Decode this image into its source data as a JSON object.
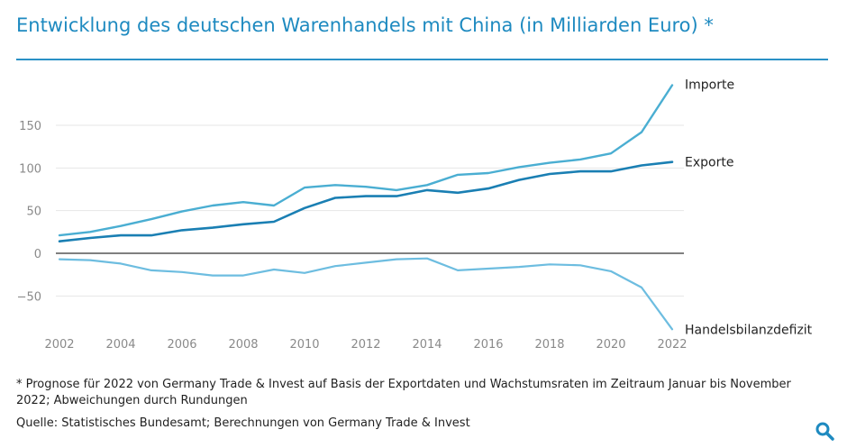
{
  "header": {
    "title": "Entwicklung des deutschen Warenhandels mit China (in Milliarden Euro) *"
  },
  "footer": {
    "note": "* Prognose für 2022 von Germany Trade & Invest auf Basis der Exportdaten und Wachstumsraten im Zeitraum Januar bis November 2022; Abweichungen durch Rundungen",
    "source": "Quelle: Statistisches Bundesamt; Berechnungen von Germany Trade & Invest"
  },
  "toolbar": {
    "zoom_icon": "magnifier-icon"
  },
  "colors": {
    "accent": "#1e8ac0",
    "importe": "#4aaed2",
    "exporte": "#1a7fb3",
    "defizit": "#6dbde0",
    "grid": "#e6e6e6",
    "zero_line": "#333333",
    "tick_text": "#8a8a8a"
  },
  "chart_data": {
    "type": "line",
    "title": "Entwicklung des deutschen Warenhandels mit China (in Milliarden Euro) *",
    "xlabel": "",
    "ylabel": "",
    "x": [
      2002,
      2003,
      2004,
      2005,
      2006,
      2007,
      2008,
      2009,
      2010,
      2011,
      2012,
      2013,
      2014,
      2015,
      2016,
      2017,
      2018,
      2019,
      2020,
      2021,
      2022
    ],
    "x_ticks": [
      "2002",
      "2004",
      "2006",
      "2008",
      "2010",
      "2012",
      "2014",
      "2016",
      "2018",
      "2020",
      "2022"
    ],
    "y_ticks": [
      "−50",
      "0",
      "50",
      "100",
      "150"
    ],
    "y_tick_values": [
      -50,
      0,
      50,
      100,
      150
    ],
    "ylim": [
      -90,
      200
    ],
    "xlim": [
      2002,
      2022
    ],
    "grid": true,
    "legend": "direct labels at line ends (right)",
    "series": [
      {
        "name": "Importe",
        "values": [
          21,
          25,
          32,
          40,
          49,
          56,
          60,
          56,
          77,
          80,
          78,
          74,
          80,
          92,
          94,
          101,
          106,
          110,
          117,
          142,
          197
        ]
      },
      {
        "name": "Exporte",
        "values": [
          14,
          18,
          21,
          21,
          27,
          30,
          34,
          37,
          53,
          65,
          67,
          67,
          74,
          71,
          76,
          86,
          93,
          96,
          96,
          103,
          107
        ]
      },
      {
        "name": "Handelsbilanzdefizit",
        "values": [
          -7,
          -8,
          -12,
          -20,
          -22,
          -26,
          -26,
          -19,
          -23,
          -15,
          -11,
          -7,
          -6,
          -20,
          -18,
          -16,
          -13,
          -14,
          -21,
          -40,
          -89
        ]
      }
    ]
  }
}
